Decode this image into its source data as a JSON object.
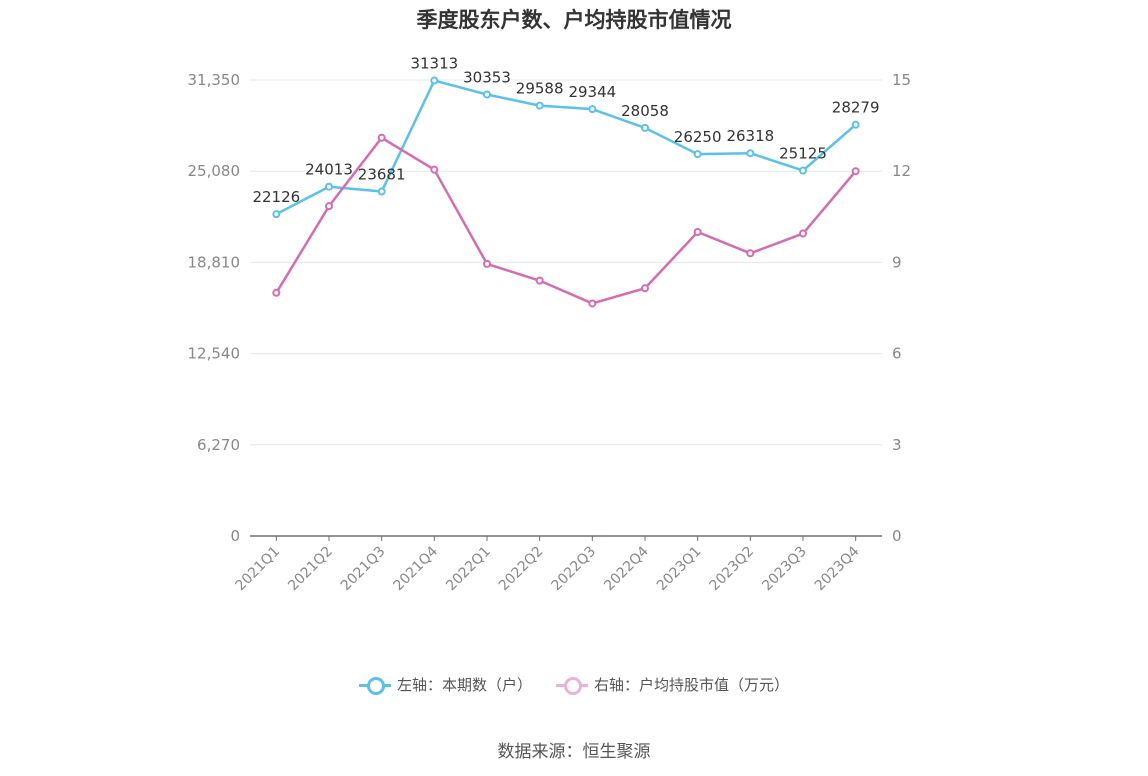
{
  "title": "季度股东户数、户均持股市值情况",
  "source": "数据来源：恒生聚源",
  "colors": {
    "left_series": "#5bc0eb",
    "right_series": "#d66bb0",
    "grid": "#e3e8f0",
    "axis_text": "#888888"
  },
  "chart_data": {
    "type": "line",
    "title": "季度股东户数、户均持股市值情况",
    "categories": [
      "2021Q1",
      "2021Q2",
      "2021Q3",
      "2021Q4",
      "2022Q1",
      "2022Q2",
      "2022Q3",
      "2022Q4",
      "2023Q1",
      "2023Q2",
      "2023Q3",
      "2023Q4"
    ],
    "left_axis": {
      "ticks": [
        "0",
        "6,270",
        "12,540",
        "18,810",
        "25,080",
        "31,350"
      ],
      "ylim": [
        0,
        31350
      ]
    },
    "right_axis": {
      "ticks": [
        "0",
        "3",
        "6",
        "9",
        "12",
        "15"
      ],
      "ylim": [
        0,
        15
      ]
    },
    "series": [
      {
        "name": "左轴：本期数（户）",
        "axis": "left",
        "color": "#5bc0eb",
        "values": [
          22126,
          24013,
          23681,
          31313,
          30353,
          29588,
          29344,
          28058,
          26250,
          26318,
          25125,
          28279
        ],
        "labels": [
          "22126",
          "24013",
          "23681",
          "31313",
          "30353",
          "29588",
          "29344",
          "28058",
          "26250",
          "26318",
          "25125",
          "28279"
        ]
      },
      {
        "name": "右轴：户均持股市值（万元）",
        "axis": "right",
        "color": "#d66bb0",
        "values": [
          8.0,
          10.85,
          13.1,
          12.05,
          8.95,
          8.4,
          7.65,
          8.15,
          10.0,
          9.3,
          9.95,
          12.0
        ]
      }
    ],
    "grid": true,
    "legend": "bottom"
  }
}
